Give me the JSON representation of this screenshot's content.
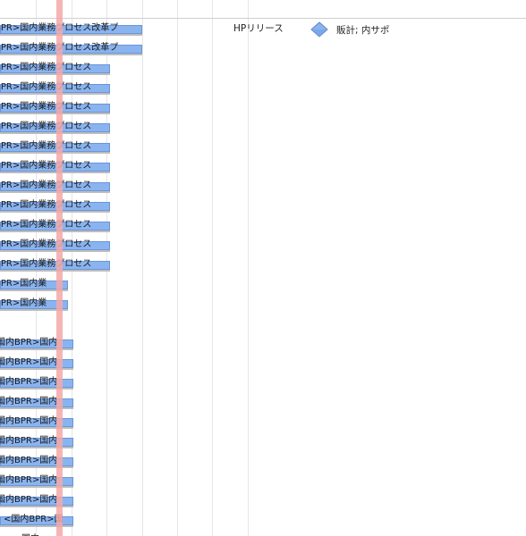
{
  "milestone": {
    "label": "HPリリース",
    "icon": "diamond-milestone-icon",
    "text": "販計; 内サポ"
  },
  "rows": [
    {
      "label": "BPR>国内業務プロセス改革プ",
      "fill": 0.27
    },
    {
      "label": "BPR>国内業務プロセス改革プ",
      "fill": 0.27
    },
    {
      "label": "BPR>国内業務プロセス",
      "fill": 0.21
    },
    {
      "label": "BPR>国内業務プロセス",
      "fill": 0.21
    },
    {
      "label": "BPR>国内業務プロセス",
      "fill": 0.21
    },
    {
      "label": "BPR>国内業務プロセス",
      "fill": 0.21
    },
    {
      "label": "BPR>国内業務プロセス",
      "fill": 0.21
    },
    {
      "label": "BPR>国内業務プロセス",
      "fill": 0.21
    },
    {
      "label": "BPR>国内業務プロセス",
      "fill": 0.21
    },
    {
      "label": "BPR>国内業務プロセス",
      "fill": 0.21
    },
    {
      "label": "BPR>国内業務プロセス",
      "fill": 0.21
    },
    {
      "label": "BPR>国内業務プロセス",
      "fill": 0.21
    },
    {
      "label": "BPR>国内業務プロセス",
      "fill": 0.21
    },
    {
      "label": "BPR>国内業",
      "fill": 0.13
    },
    {
      "label": "BPR>国内業",
      "fill": 0.13
    },
    {
      "label": "",
      "fill": 0
    },
    {
      "label": "国内BPR>国内",
      "fill": 0.14
    },
    {
      "label": "国内BPR>国内",
      "fill": 0.14
    },
    {
      "label": "国内BPR>国内",
      "fill": 0.14
    },
    {
      "label": "国内BPR>国内",
      "fill": 0.14
    },
    {
      "label": "国内BPR>国内",
      "fill": 0.14
    },
    {
      "label": "国内BPR>国内",
      "fill": 0.14
    },
    {
      "label": "国内BPR>国内",
      "fill": 0.14
    },
    {
      "label": "国内BPR>国内",
      "fill": 0.14
    },
    {
      "label": "国内BPR>国内",
      "fill": 0.14
    },
    {
      "label": "<国内BPR>国",
      "fill": 0.14
    },
    {
      "label": "—国内",
      "fill": 0.14
    }
  ]
}
